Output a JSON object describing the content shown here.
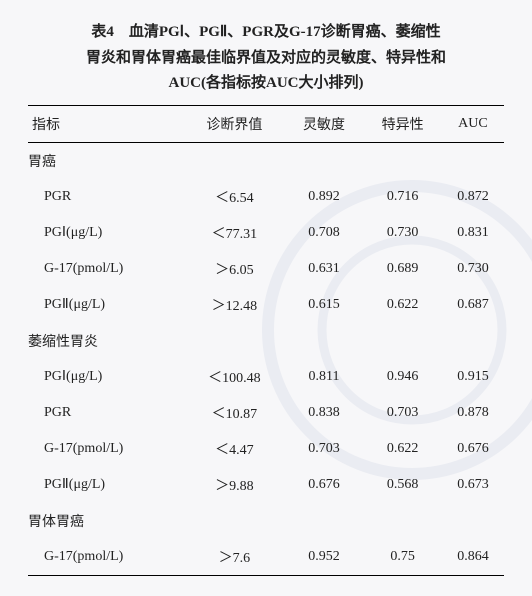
{
  "title_line1": "表4　血清PGⅠ、PGⅡ、PGR及G-17诊断胃癌、萎缩性",
  "title_line2": "胃炎和胃体胃癌最佳临界值及对应的灵敏度、特异性和",
  "title_line3": "AUC(各指标按AUC大小排列)",
  "headers": [
    "指标",
    "诊断界值",
    "灵敏度",
    "特异性",
    "AUC"
  ],
  "sections": [
    {
      "name": "胃癌",
      "rows": [
        [
          "PGR",
          "＜6.54",
          "0.892",
          "0.716",
          "0.872"
        ],
        [
          "PGⅠ(μg/L)",
          "＜77.31",
          "0.708",
          "0.730",
          "0.831"
        ],
        [
          "G-17(pmol/L)",
          "＞6.05",
          "0.631",
          "0.689",
          "0.730"
        ],
        [
          "PGⅡ(μg/L)",
          "＞12.48",
          "0.615",
          "0.622",
          "0.687"
        ]
      ]
    },
    {
      "name": "萎缩性胃炎",
      "rows": [
        [
          "PGⅠ(μg/L)",
          "＜100.48",
          "0.811",
          "0.946",
          "0.915"
        ],
        [
          "PGR",
          "＜10.87",
          "0.838",
          "0.703",
          "0.878"
        ],
        [
          "G-17(pmol/L)",
          "＜4.47",
          "0.703",
          "0.622",
          "0.676"
        ],
        [
          "PGⅡ(μg/L)",
          "＞9.88",
          "0.676",
          "0.568",
          "0.673"
        ]
      ]
    },
    {
      "name": "胃体胃癌",
      "rows": [
        [
          "G-17(pmol/L)",
          "＞7.6",
          "0.952",
          "0.75",
          "0.864"
        ]
      ]
    }
  ],
  "watermark_color": "#2a4a8a"
}
